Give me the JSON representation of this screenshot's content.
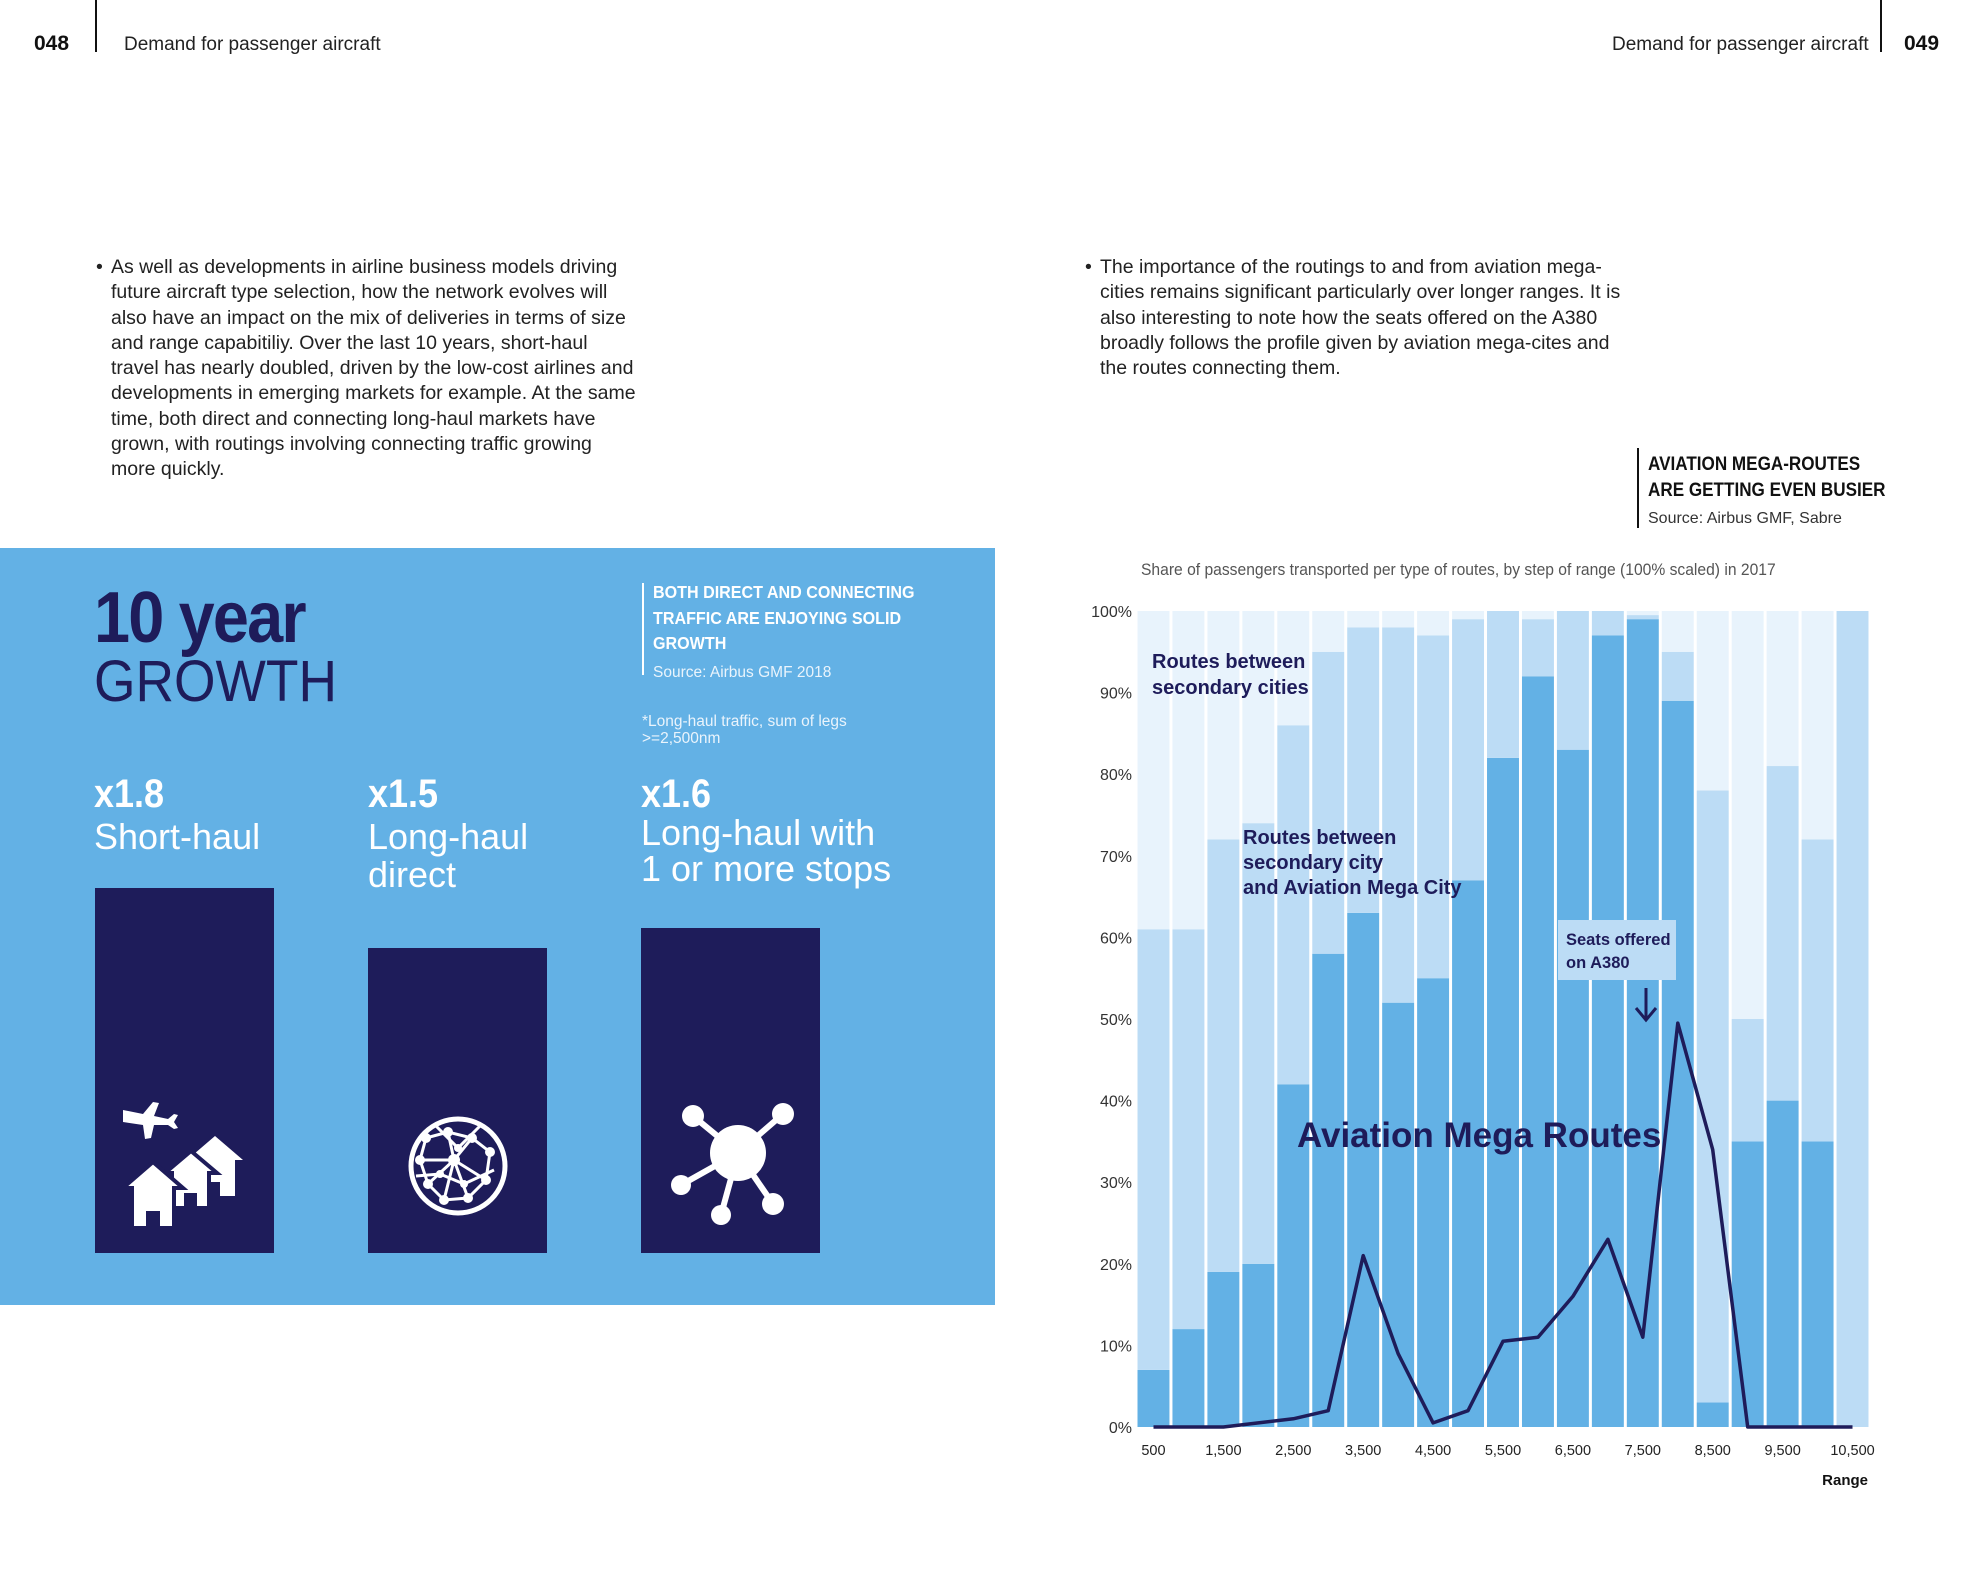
{
  "header": {
    "left_page_number": "048",
    "left_title": "Demand for passenger aircraft",
    "right_title": "Demand for passenger aircraft",
    "right_page_number": "049"
  },
  "left_text": "As well as developments in airline business models driving future aircraft type selection, how the network evolves will also have an impact on the mix of deliveries in terms of size and range capabitiliy. Over the last 10 years, short-haul travel has nearly doubled, driven by the low-cost airlines and developments in emerging markets for example. At the same time, both direct and connecting long-haul markets have grown, with routings involving connecting traffic growing more quickly.",
  "right_text": "The importance of the routings to and from aviation mega-cities remains significant particularly over longer ranges. It is also interesting to note how the seats offered on the A380 broadly follows the profile given by aviation mega-cites and the routes connecting them.",
  "growth": {
    "title_bold": "10 year",
    "title_light": "GROWTH",
    "note_heading": "BOTH DIRECT AND CONNECTING TRAFFIC ARE ENJOYING SOLID GROWTH",
    "note_source": "Source: Airbus GMF 2018",
    "footnote": "*Long-haul traffic, sum of legs >=2,500nm",
    "items": [
      {
        "multiplier": "x1.8",
        "label_1": "Short-haul",
        "label_2": "",
        "value": 1.8,
        "icon": "houses-plane-icon"
      },
      {
        "multiplier": "x1.5",
        "label_1": "Long-haul",
        "label_2": "direct",
        "value": 1.5,
        "icon": "globe-network-icon"
      },
      {
        "multiplier": "x1.6",
        "label_1": "Long-haul with",
        "label_2": "1 or more stops",
        "value": 1.6,
        "icon": "hub-network-icon"
      }
    ]
  },
  "chart": {
    "title_line1": "AVIATION MEGA-ROUTES",
    "title_line2": "ARE GETTING EVEN BUSIER",
    "source": "Source: Airbus GMF, Sabre",
    "subtitle": "Share of passengers transported per type of routes, by step of range (100% scaled) in 2017"
  },
  "chart_data": {
    "type": "bar",
    "stacked": true,
    "xlabel": "Range",
    "ylabel": "",
    "ylim": [
      0,
      100
    ],
    "y_ticks": [
      "0%",
      "10%",
      "20%",
      "30%",
      "40%",
      "50%",
      "60%",
      "70%",
      "80%",
      "90%",
      "100%"
    ],
    "x_tick_labels": [
      "500",
      "1,500",
      "2,500",
      "3,500",
      "4,500",
      "5,500",
      "6,500",
      "7,500",
      "8,500",
      "9,500",
      "10,500"
    ],
    "x": [
      500,
      1000,
      1500,
      2000,
      2500,
      3000,
      3500,
      4000,
      4500,
      5000,
      5500,
      6000,
      6500,
      7000,
      7500,
      8000,
      8500,
      9000,
      9500,
      10000,
      10500
    ],
    "series": [
      {
        "name": "Aviation Mega Routes",
        "color": "#63b1e5",
        "values": [
          7,
          12,
          19,
          20,
          42,
          58,
          63,
          52,
          55,
          67,
          82,
          92,
          83,
          97,
          99,
          89,
          3,
          35,
          40,
          35,
          0
        ]
      },
      {
        "name": "Routes between secondary city and Aviation Mega City",
        "color": "#bcdcf5",
        "values": [
          54,
          49,
          53,
          54,
          44,
          37,
          35,
          46,
          42,
          32,
          18,
          7,
          17,
          3,
          0.5,
          6,
          75,
          15,
          41,
          37,
          100
        ]
      },
      {
        "name": "Routes between secondary cities",
        "color": "#e8f3fc",
        "values": [
          39,
          39,
          28,
          26,
          14,
          5,
          2,
          2,
          3,
          1,
          0,
          1,
          0,
          0,
          0.5,
          5,
          22,
          50,
          19,
          28,
          0
        ]
      }
    ],
    "line_series": {
      "name": "Seats offered on A380",
      "color": "#1e1c5a",
      "values": [
        0,
        0,
        0,
        0.5,
        1,
        2,
        21,
        9,
        0.5,
        2,
        10.5,
        11,
        16,
        23,
        11,
        49.5,
        34,
        0,
        0,
        0,
        0
      ]
    },
    "annotations": {
      "secondary_cities_1": "Routes between",
      "secondary_cities_2": "secondary cities",
      "mixed_1": "Routes between",
      "mixed_2": "secondary city",
      "mixed_3": "and Aviation Mega City",
      "mega_routes": "Aviation Mega Routes",
      "a380_1": "Seats offered",
      "a380_2": "on A380"
    }
  }
}
